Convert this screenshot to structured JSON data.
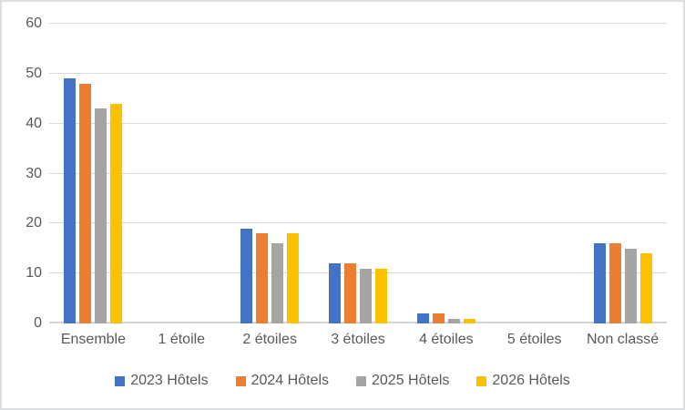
{
  "chart_data": {
    "type": "bar",
    "title": "",
    "xlabel": "",
    "ylabel": "",
    "categories": [
      "Ensemble",
      "1 étoile",
      "2 étoiles",
      "3 étoiles",
      "4 étoiles",
      "5 étoiles",
      "Non classé"
    ],
    "series": [
      {
        "name": "2023 Hôtels",
        "color": "#4472C4",
        "values": [
          49,
          0,
          19,
          12,
          2,
          0,
          16
        ]
      },
      {
        "name": "2024 Hôtels",
        "color": "#ED7D31",
        "values": [
          48,
          0,
          18,
          12,
          2,
          0,
          16
        ]
      },
      {
        "name": "2025 Hôtels",
        "color": "#A5A5A5",
        "values": [
          43,
          0,
          16,
          11,
          1,
          0,
          15
        ]
      },
      {
        "name": "2026 Hôtels",
        "color": "#FFC000",
        "values": [
          44,
          0,
          18,
          11,
          1,
          0,
          14
        ]
      }
    ],
    "ylim": [
      0,
      60
    ],
    "yticks": [
      0,
      10,
      20,
      30,
      40,
      50,
      60
    ],
    "grid": true,
    "legend_position": "bottom"
  },
  "style_colors": {
    "text": "#595959",
    "gridline": "#D9D9D9",
    "frame_border": "#DCDFE2",
    "background": "#FFFFFF"
  }
}
